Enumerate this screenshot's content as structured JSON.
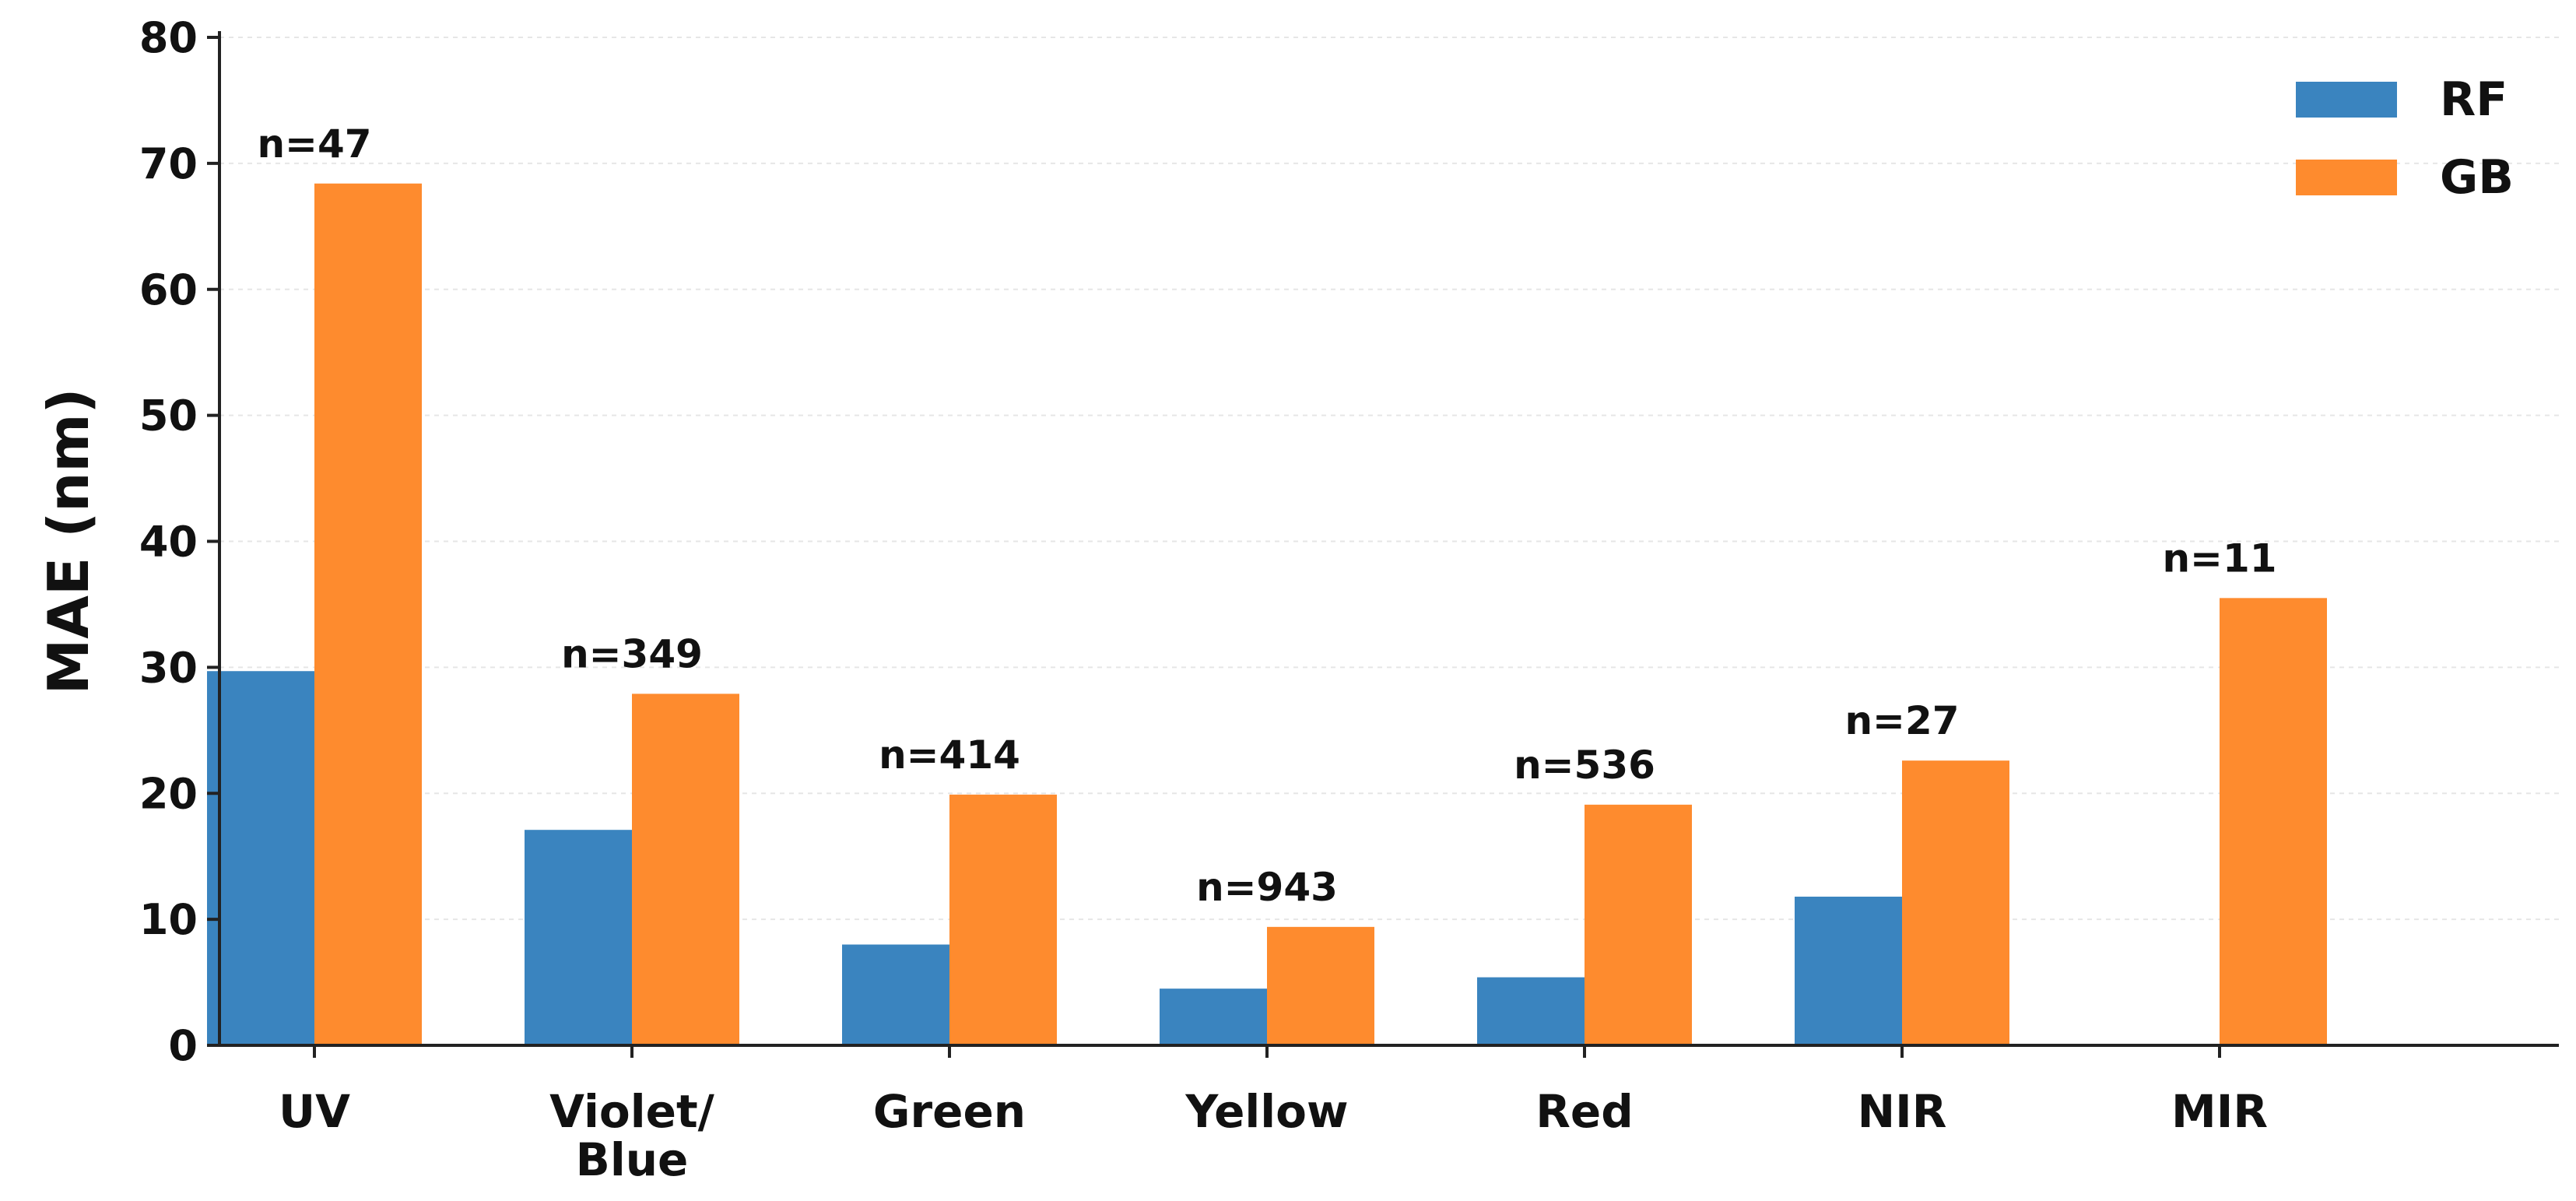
{
  "chart_data": {
    "type": "bar",
    "title": "",
    "xlabel": "",
    "ylabel": "MAE (nm)",
    "ylim": [
      0,
      80
    ],
    "yticks": [
      "0",
      "10",
      "20",
      "30",
      "40",
      "50",
      "60",
      "70",
      "80"
    ],
    "grid": "y-dashed",
    "legend_position": "top-right",
    "categories": [
      [
        "UV"
      ],
      [
        "Violet/",
        "Blue"
      ],
      [
        "Green"
      ],
      [
        "Yellow"
      ],
      [
        "Red"
      ],
      [
        "NIR"
      ],
      [
        "MIR"
      ]
    ],
    "series": [
      {
        "name": "RF",
        "color": "#3a84bf",
        "values": [
          29.7,
          17.1,
          8.0,
          4.5,
          5.4,
          11.8,
          0
        ]
      },
      {
        "name": "GB",
        "color": "#fe8b2e",
        "values": [
          68.4,
          27.9,
          19.9,
          9.4,
          19.1,
          22.6,
          35.5
        ]
      }
    ],
    "annotations": [
      "n=47",
      "n=349",
      "n=414",
      "n=943",
      "n=536",
      "n=27",
      "n=11"
    ]
  }
}
